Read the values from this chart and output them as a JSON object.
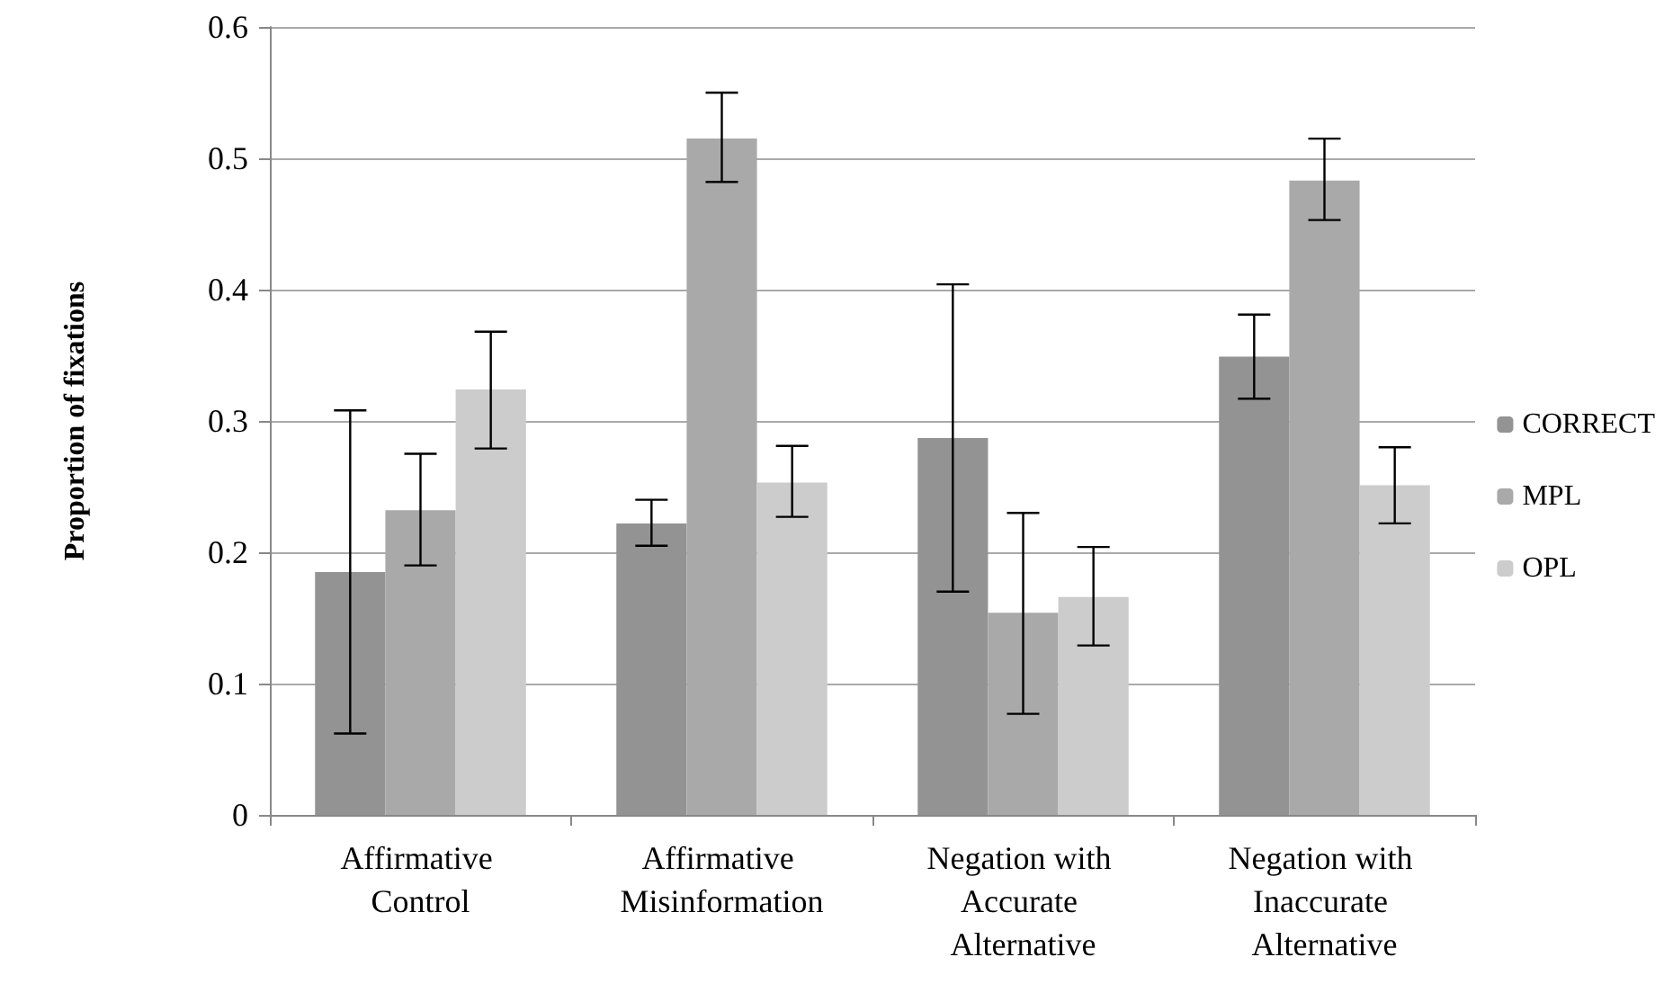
{
  "chart_data": {
    "type": "bar",
    "ylabel": "Proportion of fixations",
    "categories": [
      "Affirmative Control",
      "Affirmative Misinformation",
      "Negation with Accurate Alternative",
      "Negation with Inaccurate Alternative"
    ],
    "series": [
      {
        "name": "CORRECT",
        "color": "#939393",
        "values": [
          0.185,
          0.222,
          0.287,
          0.349
        ],
        "errors": [
          [
            0.062,
            0.308
          ],
          [
            0.205,
            0.24
          ],
          [
            0.17,
            0.404
          ],
          [
            0.317,
            0.381
          ]
        ]
      },
      {
        "name": "MPL",
        "color": "#a9a9a9",
        "values": [
          0.232,
          0.515,
          0.154,
          0.483
        ],
        "errors": [
          [
            0.19,
            0.275
          ],
          [
            0.482,
            0.55
          ],
          [
            0.077,
            0.23
          ],
          [
            0.453,
            0.515
          ]
        ]
      },
      {
        "name": "OPL",
        "color": "#cccccc",
        "values": [
          0.324,
          0.253,
          0.166,
          0.251
        ],
        "errors": [
          [
            0.279,
            0.368
          ],
          [
            0.227,
            0.281
          ],
          [
            0.129,
            0.204
          ],
          [
            0.222,
            0.28
          ]
        ]
      }
    ],
    "ylim": [
      0,
      0.6
    ],
    "yticks": [
      0,
      0.1,
      0.2,
      0.3,
      0.4,
      0.5,
      0.6
    ],
    "grid": "y",
    "legend": "right"
  }
}
